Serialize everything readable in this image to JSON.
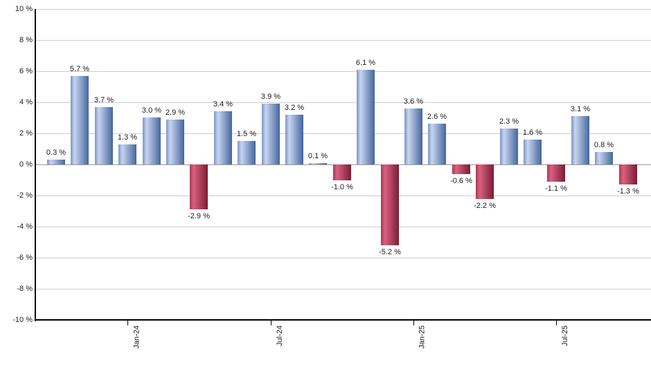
{
  "chart_data": {
    "type": "bar",
    "title": "",
    "xlabel": "",
    "ylabel": "",
    "values": [
      0.3,
      5.7,
      3.7,
      1.3,
      3.0,
      2.9,
      -2.9,
      3.4,
      1.5,
      3.9,
      3.2,
      0.1,
      -1.0,
      6.1,
      -5.2,
      3.6,
      2.6,
      -0.6,
      -2.2,
      2.3,
      1.6,
      -1.1,
      3.1,
      0.8,
      -1.3
    ],
    "data_labels": [
      "0.3 %",
      "5.7 %",
      "3.7 %",
      "1.3 %",
      "3.0 %",
      "2.9 %",
      "-2.9 %",
      "3.4 %",
      "1.5 %",
      "3.9 %",
      "3.2 %",
      "0.1 %",
      "-1.0 %",
      "6.1 %",
      "-5.2 %",
      "3.6 %",
      "2.6 %",
      "-0.6 %",
      "-2.2 %",
      "2.3 %",
      "1.6 %",
      "-1.1 %",
      "3.1 %",
      "0.8 %",
      "-1.3 %"
    ],
    "y_axis": {
      "min": -10,
      "max": 10,
      "step": 2,
      "tick_labels": [
        "10 %",
        "8 %",
        "6 %",
        "4 %",
        "2 %",
        "0 %",
        "-2 %",
        "-4 %",
        "-6 %",
        "-8 %",
        "-10 %"
      ]
    },
    "x_axis": {
      "tick_labels": [
        "Jan-24",
        "Jul-24",
        "Jan-25",
        "Jul-25"
      ],
      "tick_bar_indices": [
        3,
        9,
        15,
        21
      ]
    },
    "legend": "none",
    "grid": "horizontal",
    "colors": {
      "positive_bar_gradient": [
        "#7b95c4",
        "#c7d5f0",
        "#45669e"
      ],
      "negative_bar_gradient": [
        "#b23455",
        "#d8617f",
        "#7b1c35"
      ],
      "gridline": "#cdcdcd",
      "zero_line": "#999999",
      "axis_line": "#000000",
      "text": "#1a1a1a",
      "background": "#ffffff"
    }
  }
}
